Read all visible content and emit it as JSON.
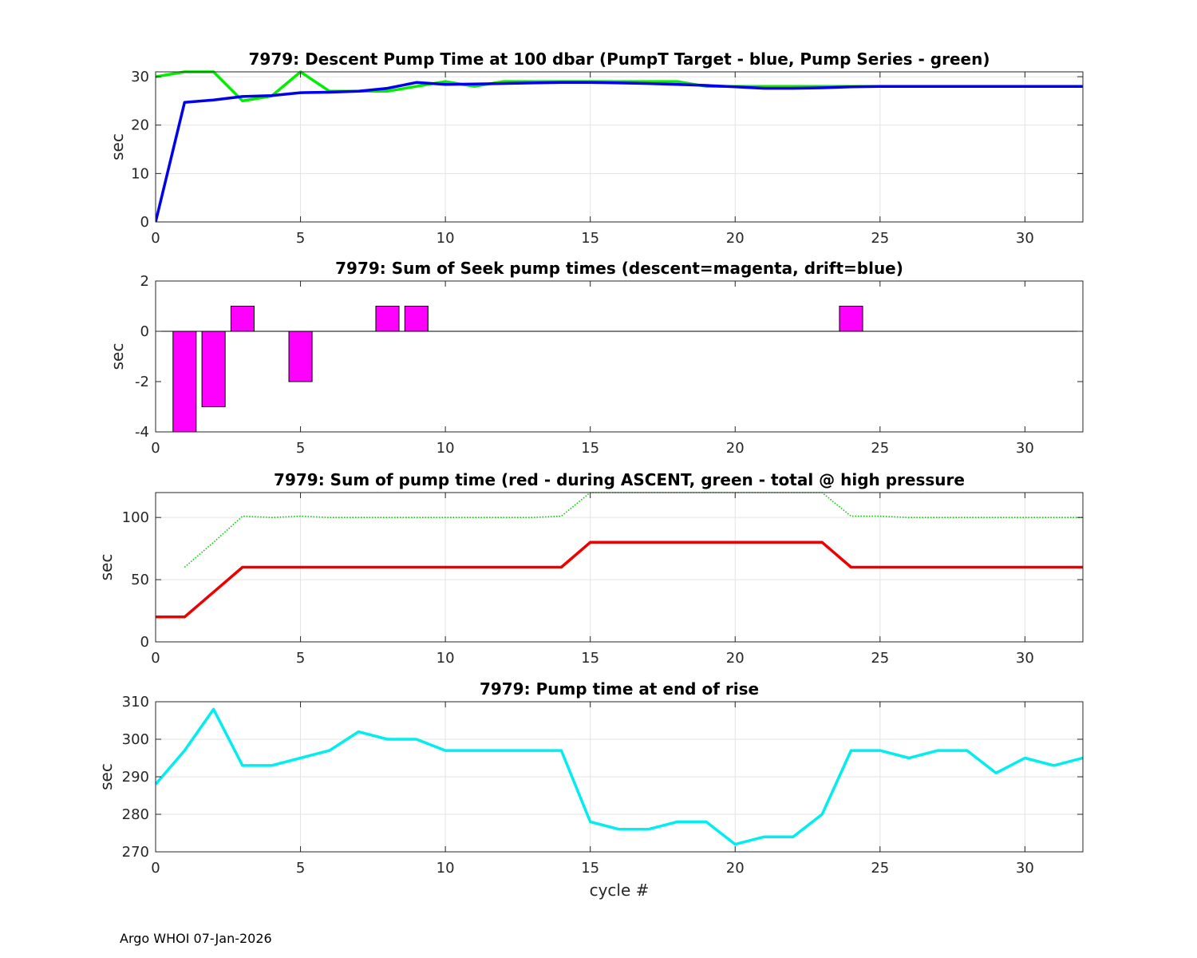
{
  "footer": "Argo WHOI 07-Jan-2026",
  "chart_data": [
    {
      "type": "line",
      "title": "7979: Descent Pump Time at 100 dbar (PumpT Target - blue, Pump Series - green)",
      "xlabel": "",
      "ylabel": "sec",
      "xlim": [
        0,
        32
      ],
      "ylim": [
        0,
        31
      ],
      "xticks": [
        0,
        5,
        10,
        15,
        20,
        25,
        30
      ],
      "yticks": [
        0,
        10,
        20,
        30
      ],
      "grid": true,
      "series": [
        {
          "color": "#00ee00",
          "x": [
            0,
            1,
            2,
            3,
            4,
            5,
            6,
            7,
            8,
            9,
            10,
            11,
            12,
            13,
            14,
            15,
            16,
            17,
            18,
            19,
            20,
            21,
            22,
            23,
            24,
            25,
            26,
            27,
            28,
            29,
            30,
            31,
            32
          ],
          "y": [
            30,
            31,
            31,
            25,
            26,
            31,
            27,
            27,
            27,
            28,
            29,
            28,
            29,
            29,
            29,
            29,
            29,
            29,
            29,
            28,
            28,
            28,
            28,
            28,
            28,
            28,
            28,
            28,
            28,
            28,
            28,
            28,
            28
          ]
        },
        {
          "color": "#0000ee",
          "x": [
            0,
            1,
            2,
            3,
            4,
            5,
            6,
            7,
            8,
            9,
            10,
            11,
            12,
            13,
            14,
            15,
            16,
            17,
            18,
            19,
            20,
            21,
            22,
            23,
            24,
            25,
            26,
            27,
            28,
            29,
            30,
            31,
            32
          ],
          "y": [
            0,
            24.7,
            25.2,
            25.9,
            26.1,
            26.7,
            26.8,
            27,
            27.6,
            28.8,
            28.4,
            28.5,
            28.6,
            28.7,
            28.8,
            28.8,
            28.7,
            28.6,
            28.4,
            28.2,
            27.9,
            27.6,
            27.6,
            27.7,
            27.9,
            28,
            28,
            28,
            28,
            28,
            28,
            28,
            28
          ]
        }
      ]
    },
    {
      "type": "bar",
      "title": "7979: Sum of Seek pump times (descent=magenta, drift=blue)",
      "xlabel": "",
      "ylabel": "sec",
      "xlim": [
        0,
        32
      ],
      "ylim": [
        -4,
        2
      ],
      "xticks": [
        0,
        5,
        10,
        15,
        20,
        25,
        30
      ],
      "yticks": [
        -4,
        -2,
        0,
        2
      ],
      "grid": false,
      "bar_color": "#ff00ff",
      "x": [
        1,
        2,
        3,
        5,
        8,
        9,
        24
      ],
      "values": [
        -4,
        -3,
        1,
        -2,
        1,
        1,
        1
      ]
    },
    {
      "type": "line",
      "title": "7979: Sum of pump time (red - during ASCENT, green - total @ high pressure",
      "xlabel": "",
      "ylabel": "sec",
      "xlim": [
        0,
        32
      ],
      "ylim": [
        0,
        120
      ],
      "xticks": [
        0,
        5,
        10,
        15,
        20,
        25,
        30
      ],
      "yticks": [
        0,
        50,
        100
      ],
      "grid": true,
      "series": [
        {
          "color": "#00cc00",
          "dotted": true,
          "x": [
            1,
            2,
            3,
            4,
            5,
            6,
            7,
            8,
            9,
            10,
            11,
            12,
            13,
            14,
            15,
            16,
            17,
            18,
            19,
            20,
            21,
            22,
            23,
            24,
            25,
            26,
            27,
            28,
            29,
            30,
            31,
            32
          ],
          "y": [
            60,
            80,
            101,
            100,
            101,
            100,
            100,
            100,
            100,
            100,
            100,
            100,
            100,
            101,
            120,
            120,
            120,
            120,
            120,
            120,
            120,
            120,
            120,
            101,
            101,
            100,
            100,
            100,
            100,
            100,
            100,
            100
          ]
        },
        {
          "color": "#ee0000",
          "x": [
            0,
            1,
            2,
            3,
            4,
            5,
            6,
            7,
            8,
            9,
            10,
            11,
            12,
            13,
            14,
            15,
            16,
            17,
            18,
            19,
            20,
            21,
            22,
            23,
            24,
            25,
            26,
            27,
            28,
            29,
            30,
            31,
            32
          ],
          "y": [
            20,
            20,
            40,
            60,
            60,
            60,
            60,
            60,
            60,
            60,
            60,
            60,
            60,
            60,
            60,
            80,
            80,
            80,
            80,
            80,
            80,
            80,
            80,
            80,
            60,
            60,
            60,
            60,
            60,
            60,
            60,
            60,
            60
          ]
        }
      ]
    },
    {
      "type": "line",
      "title": "7979: Pump time at end of rise",
      "xlabel": "cycle #",
      "ylabel": "sec",
      "xlim": [
        0,
        32
      ],
      "ylim": [
        270,
        310
      ],
      "xticks": [
        0,
        5,
        10,
        15,
        20,
        25,
        30
      ],
      "yticks": [
        270,
        280,
        290,
        300,
        310
      ],
      "grid": true,
      "series": [
        {
          "color": "#00eeee",
          "x": [
            0,
            1,
            2,
            3,
            4,
            5,
            6,
            7,
            8,
            9,
            10,
            11,
            12,
            13,
            14,
            15,
            16,
            17,
            18,
            19,
            20,
            21,
            22,
            23,
            24,
            25,
            26,
            27,
            28,
            29,
            30,
            31,
            32
          ],
          "y": [
            288,
            297,
            308,
            293,
            293,
            295,
            297,
            302,
            300,
            300,
            297,
            297,
            297,
            297,
            297,
            278,
            276,
            276,
            278,
            278,
            272,
            274,
            274,
            280,
            297,
            297,
            295,
            297,
            297,
            291,
            295,
            293,
            295
          ]
        }
      ]
    }
  ]
}
